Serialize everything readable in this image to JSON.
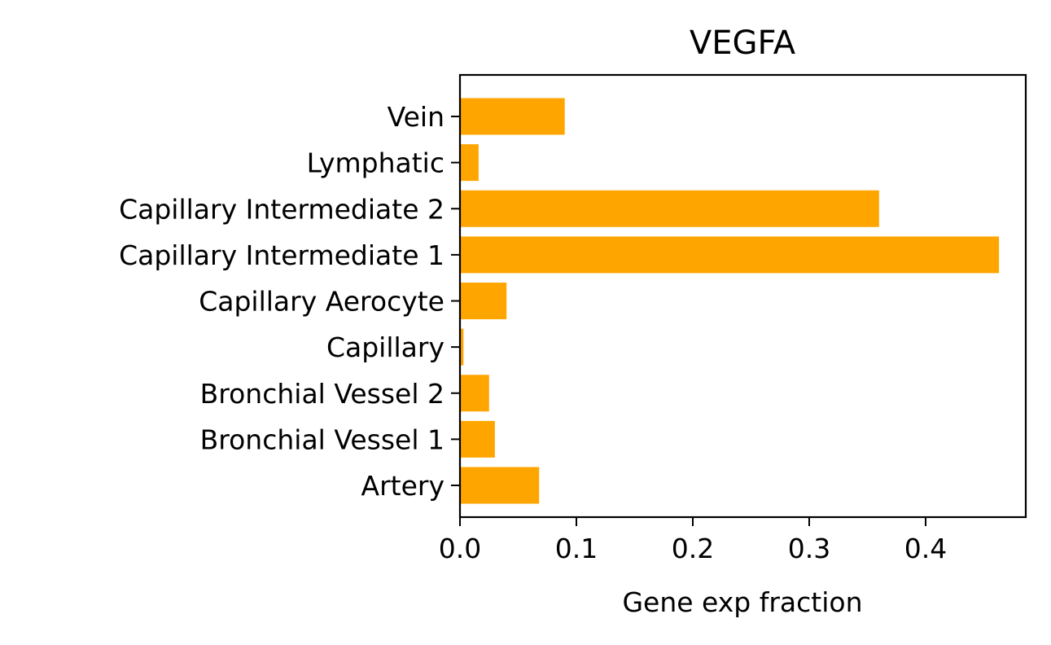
{
  "chart_data": {
    "type": "bar",
    "orientation": "horizontal",
    "title": "VEGFA",
    "xlabel": "Gene exp fraction",
    "ylabel": "",
    "categories": [
      "Artery",
      "Bronchial Vessel 1",
      "Bronchial Vessel 2",
      "Capillary",
      "Capillary Aerocyte",
      "Capillary Intermediate 1",
      "Capillary Intermediate 2",
      "Lymphatic",
      "Vein"
    ],
    "values": [
      0.068,
      0.03,
      0.025,
      0.003,
      0.04,
      0.463,
      0.36,
      0.016,
      0.09
    ],
    "xlim": [
      0,
      0.486
    ],
    "xticks": [
      0.0,
      0.1,
      0.2,
      0.3,
      0.4
    ],
    "xtick_labels": [
      "0.0",
      "0.1",
      "0.2",
      "0.3",
      "0.4"
    ],
    "bar_color": "#ffa500",
    "grid": false,
    "legend": "none"
  }
}
